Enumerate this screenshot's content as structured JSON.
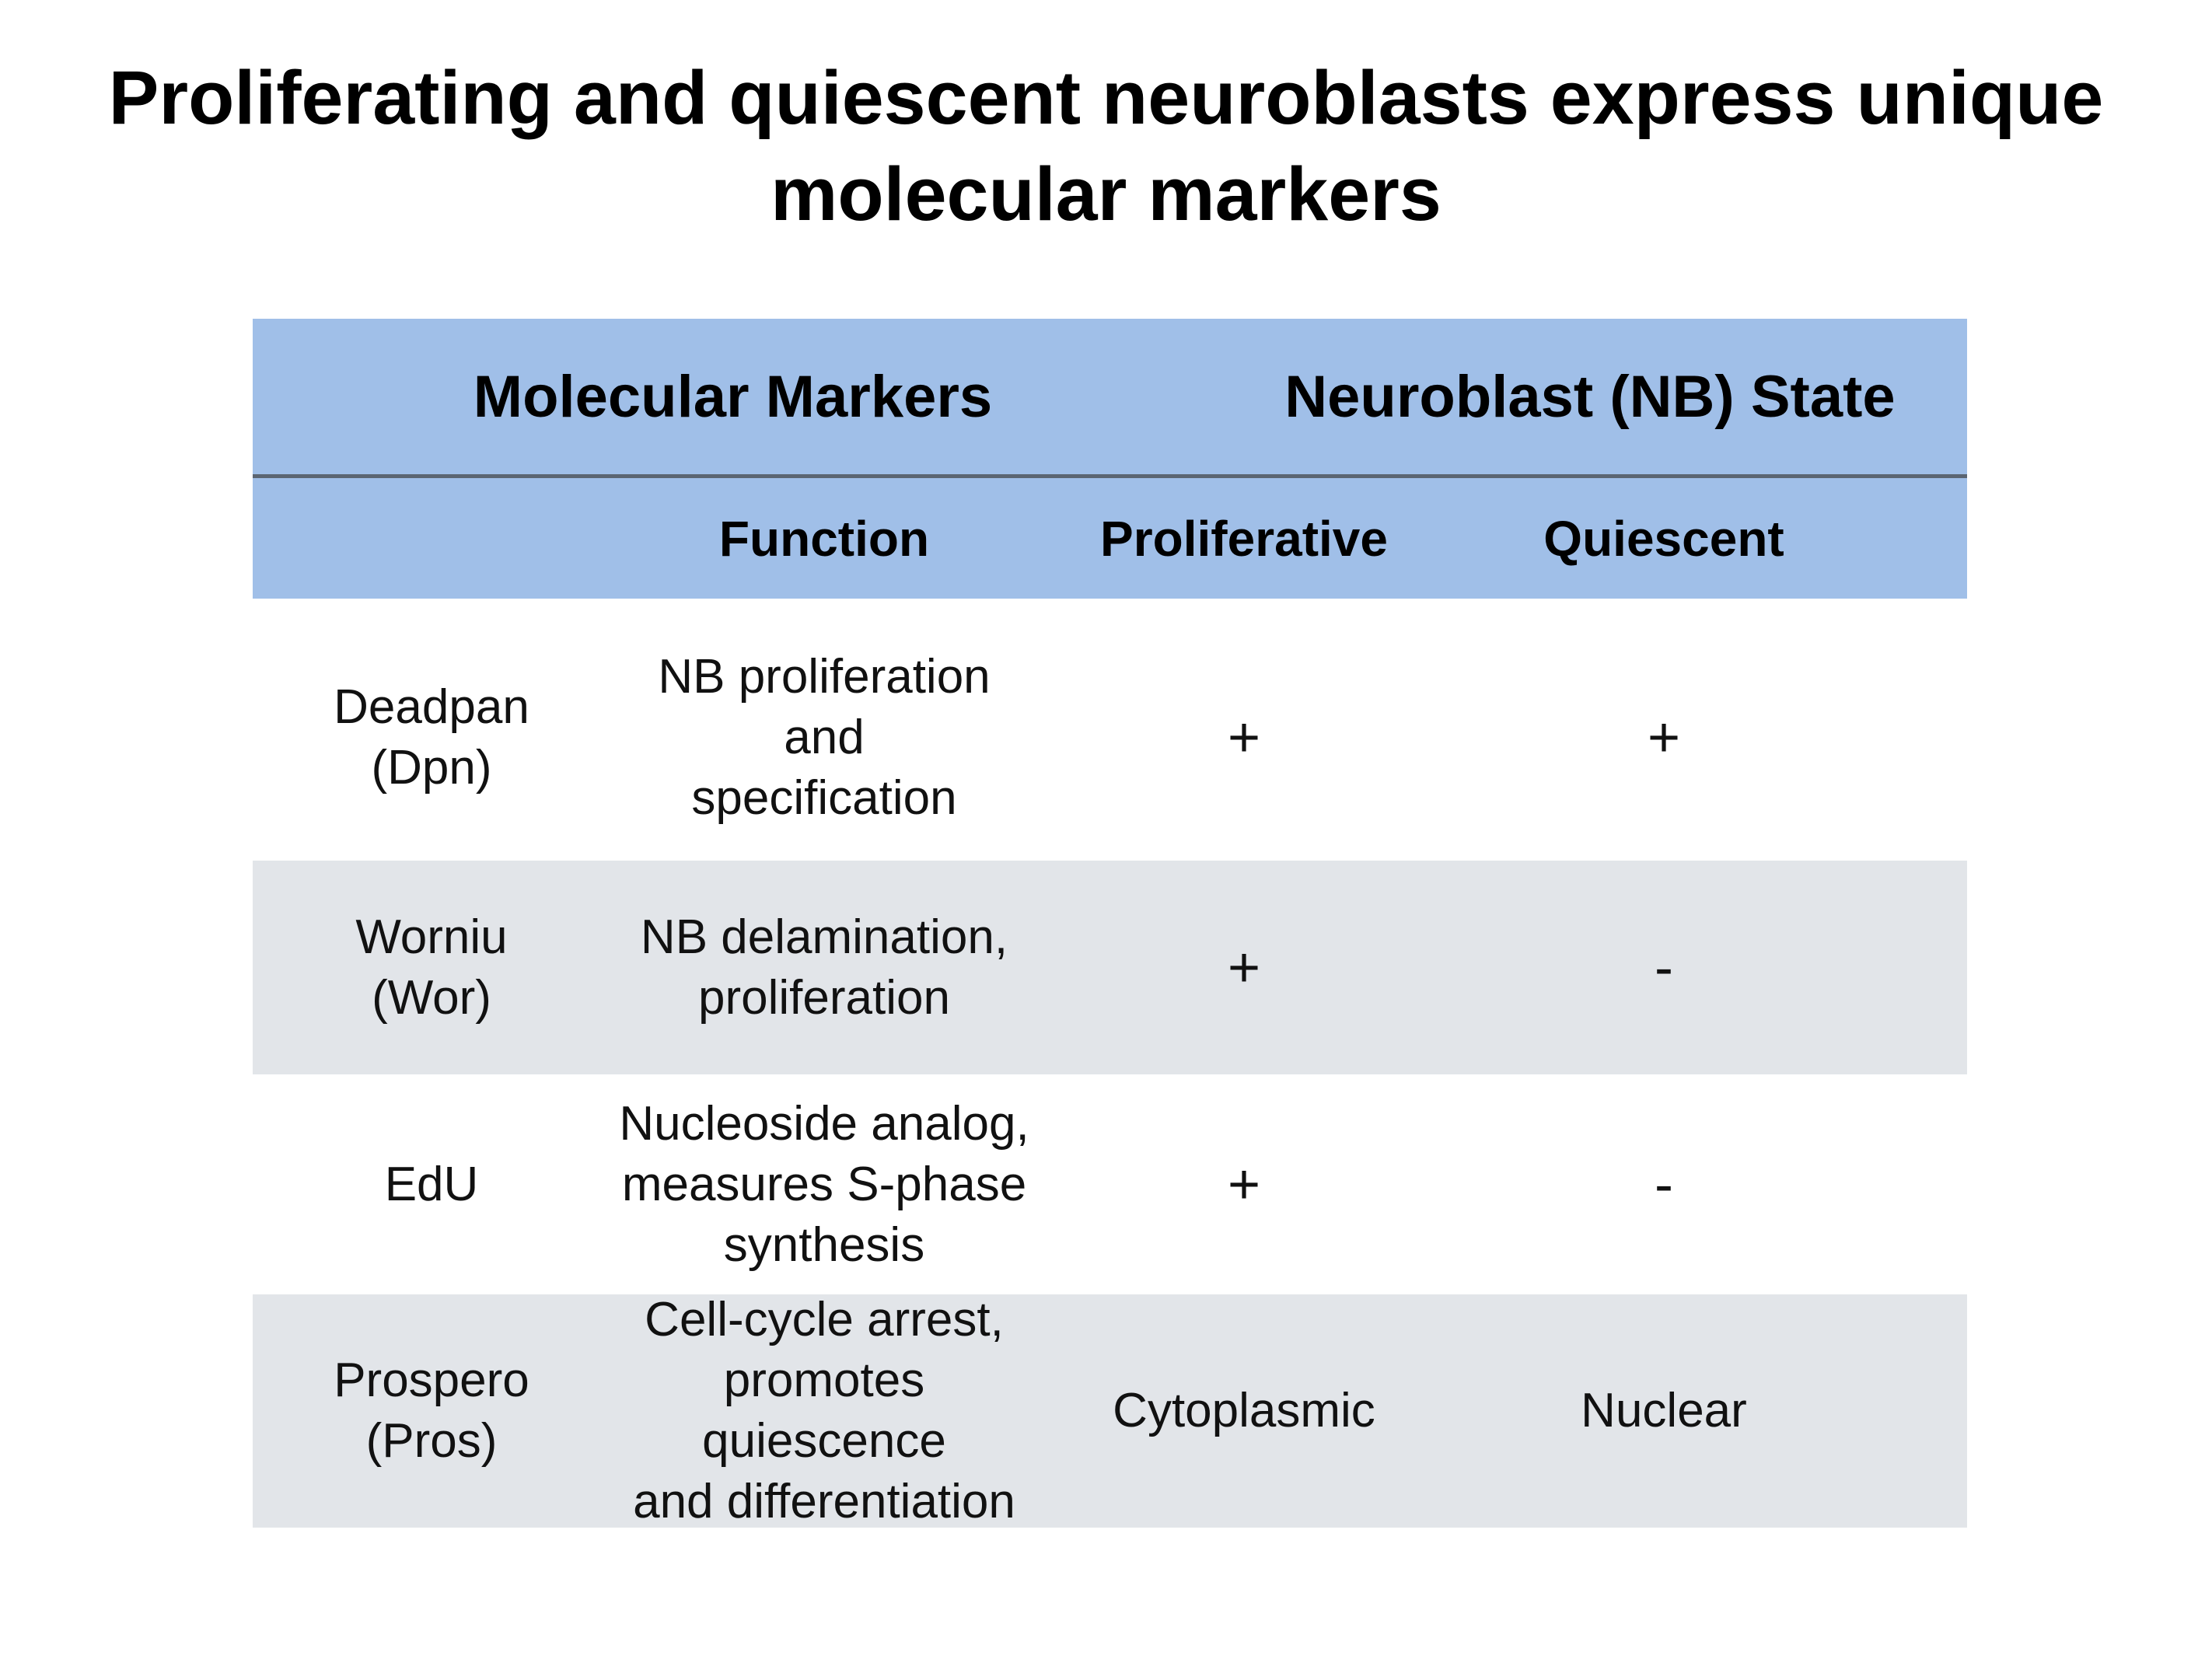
{
  "title": "Proliferating and quiescent neuroblasts express unique molecular markers",
  "colors": {
    "header_bg": "#a0bfe8",
    "header_divider": "#5b6572",
    "row_shade": "#e2e5e9",
    "row_plain": "#ffffff"
  },
  "table": {
    "header_groups": {
      "markers": "Molecular Markers",
      "state": "Neuroblast (NB) State"
    },
    "columns": {
      "function": "Function",
      "proliferative": "Proliferative",
      "quiescent": "Quiescent"
    },
    "rows": [
      {
        "marker": "Deadpan\n(Dpn)",
        "function": "NB proliferation and\nspecification",
        "proliferative": "+",
        "quiescent": "+"
      },
      {
        "marker": "Worniu\n(Wor)",
        "function": "NB delamination,\nproliferation",
        "proliferative": "+",
        "quiescent": "-"
      },
      {
        "marker": "EdU",
        "function": "Nucleoside analog,\nmeasures S-phase\nsynthesis",
        "proliferative": "+",
        "quiescent": "-"
      },
      {
        "marker": "Prospero\n(Pros)",
        "function": "Cell-cycle arrest,\npromotes quiescence\nand differentiation",
        "proliferative": "Cytoplasmic",
        "quiescent": "Nuclear"
      }
    ]
  }
}
